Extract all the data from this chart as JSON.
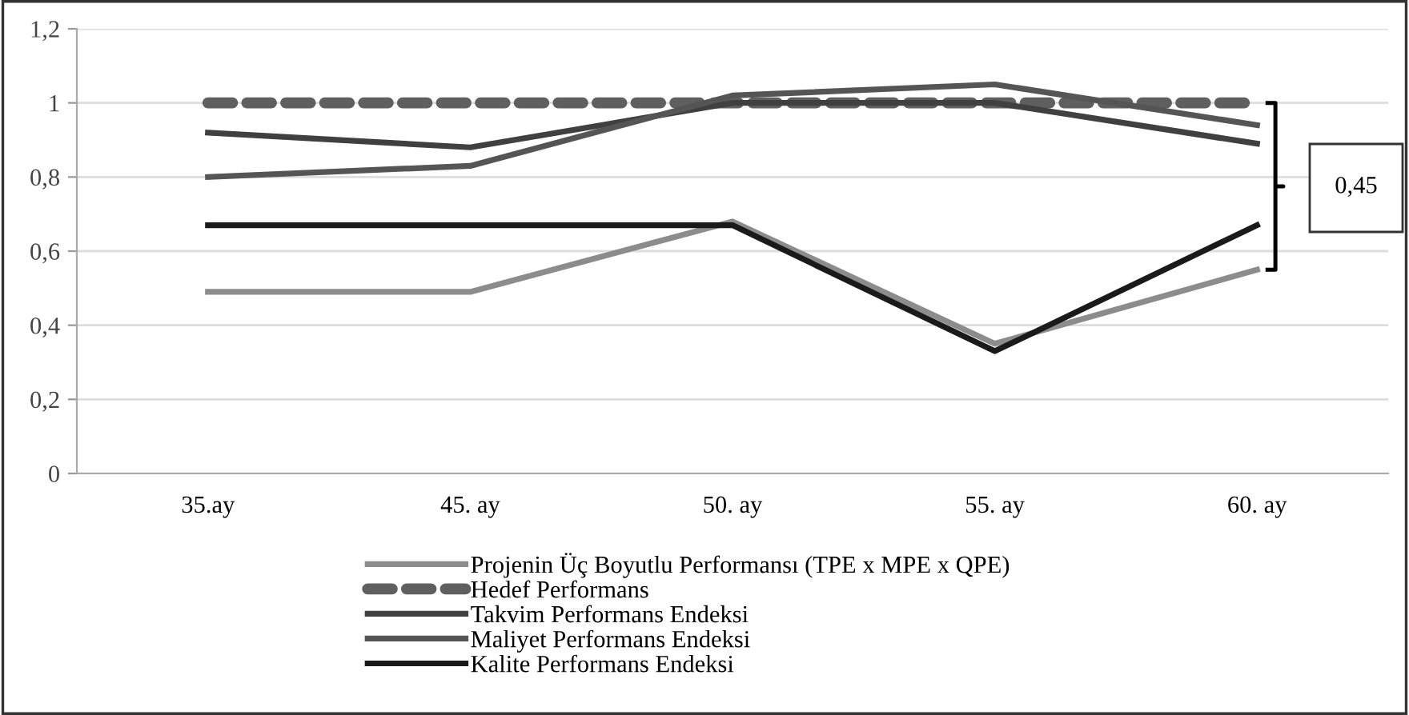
{
  "chart_data": {
    "type": "line",
    "categories": [
      "35.ay",
      "45. ay",
      "50. ay",
      "55. ay",
      "60. ay"
    ],
    "series": [
      {
        "name": "Projenin Üç Boyutlu Performansı (TPE x MPE x QPE)",
        "color": "#8c8c8c",
        "values": [
          0.49,
          0.49,
          0.68,
          0.35,
          0.55
        ]
      },
      {
        "name": "Hedef Performans",
        "color": "#5f5f5f",
        "values": [
          1,
          1,
          1,
          1,
          1
        ],
        "line_style": "dashed"
      },
      {
        "name": "Takvim Performans Endeksi",
        "color": "#404040",
        "values": [
          0.92,
          0.88,
          1.0,
          1.0,
          0.89
        ]
      },
      {
        "name": "Maliyet Performans Endeksi",
        "color": "#555555",
        "values": [
          0.8,
          0.83,
          1.02,
          1.05,
          0.94
        ]
      },
      {
        "name": "Kalite Performans Endeksi",
        "color": "#1a1a1a",
        "values": [
          0.67,
          0.67,
          0.67,
          0.33,
          0.67
        ]
      }
    ],
    "ylim": [
      0,
      1.2
    ],
    "yticks": [
      {
        "value": 0,
        "label": "0"
      },
      {
        "value": 0.2,
        "label": "0,2"
      },
      {
        "value": 0.4,
        "label": "0,4"
      },
      {
        "value": 0.6,
        "label": "0,6"
      },
      {
        "value": 0.8,
        "label": "0,8"
      },
      {
        "value": 1,
        "label": "1"
      },
      {
        "value": 1.2,
        "label": "1,2"
      }
    ],
    "grid": "y",
    "legend": "bottom",
    "line_style": "solid",
    "annotations": [
      "0,45"
    ]
  }
}
